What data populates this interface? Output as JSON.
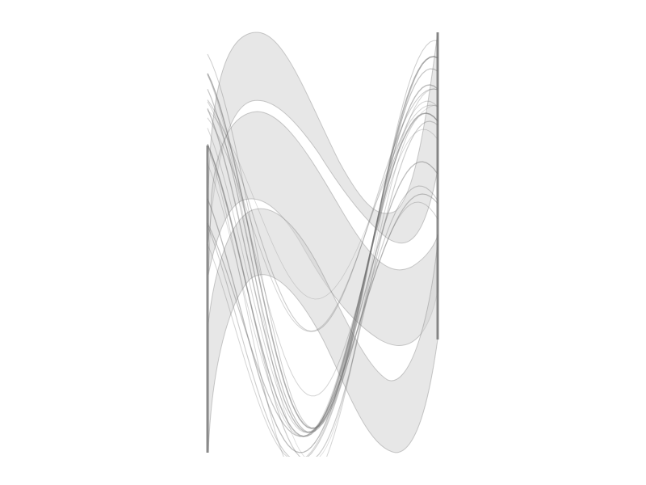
{
  "image": {
    "kind": "strange-attractor-render",
    "background_color": "#ffffff",
    "ink_color": "#6f6f6f",
    "wash_color": "#d4d4d4"
  }
}
